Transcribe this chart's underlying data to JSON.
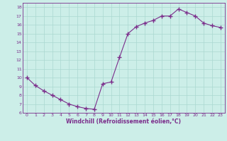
{
  "x": [
    0,
    1,
    2,
    3,
    4,
    5,
    6,
    7,
    8,
    9,
    10,
    11,
    12,
    13,
    14,
    15,
    16,
    17,
    18,
    19,
    20,
    21,
    22,
    23
  ],
  "y": [
    10.0,
    9.1,
    8.5,
    8.0,
    7.5,
    7.0,
    6.7,
    6.5,
    6.4,
    9.3,
    9.5,
    12.3,
    15.0,
    15.8,
    16.2,
    16.5,
    17.0,
    17.0,
    17.8,
    17.4,
    17.0,
    16.2,
    15.9,
    15.7
  ],
  "line_color": "#7b2d8b",
  "marker": "+",
  "marker_size": 4,
  "bg_color": "#cceee8",
  "grid_color": "#aad8d0",
  "xlabel": "Windchill (Refroidissement éolien,°C)",
  "ylim": [
    6,
    18.5
  ],
  "xlim": [
    -0.5,
    23.5
  ],
  "yticks": [
    6,
    7,
    8,
    9,
    10,
    11,
    12,
    13,
    14,
    15,
    16,
    17,
    18
  ],
  "xticks": [
    0,
    1,
    2,
    3,
    4,
    5,
    6,
    7,
    8,
    9,
    10,
    11,
    12,
    13,
    14,
    15,
    16,
    17,
    18,
    19,
    20,
    21,
    22,
    23
  ],
  "tick_color": "#7b2d8b",
  "axis_color": "#7b2d8b",
  "figsize": [
    3.2,
    2.0
  ],
  "dpi": 100
}
